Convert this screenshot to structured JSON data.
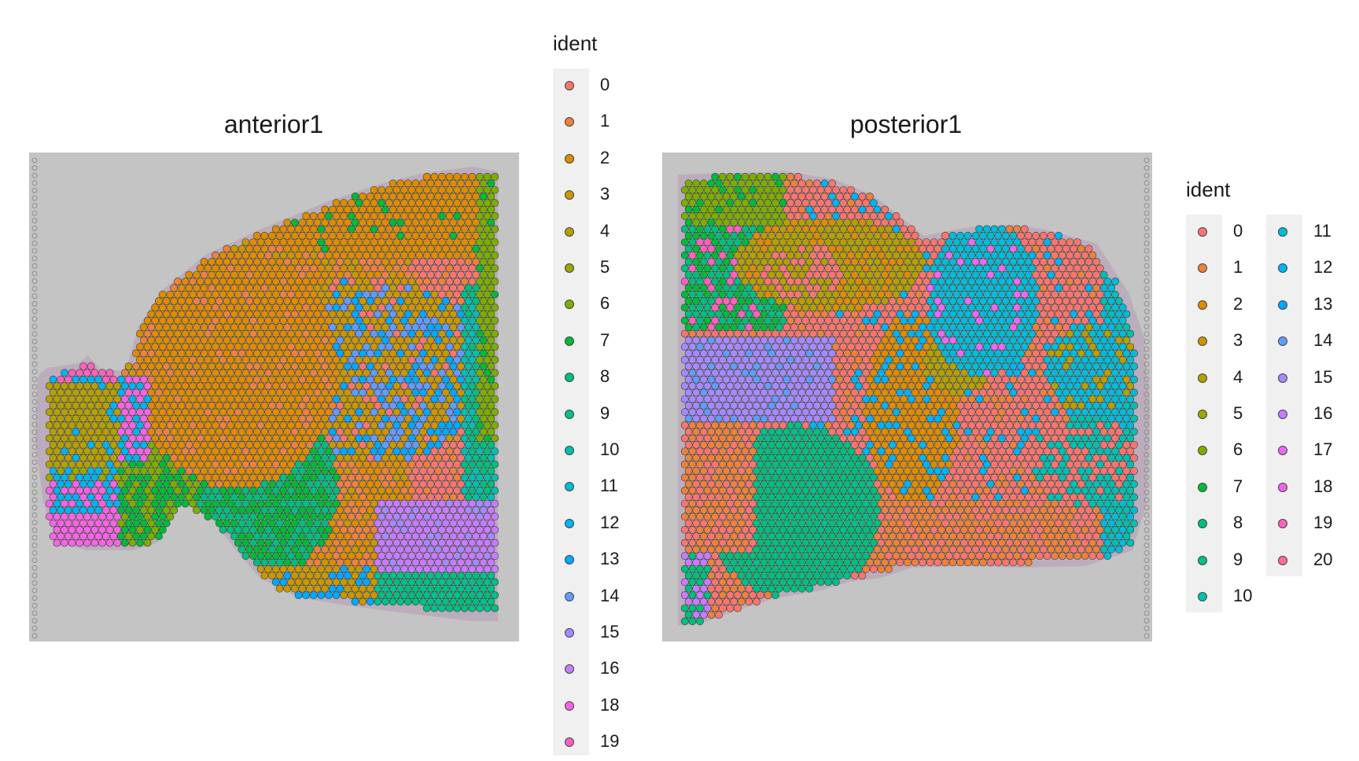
{
  "chart_data": [
    {
      "type": "scatter",
      "title": "anterior1",
      "legend_position": "right",
      "legend_title": "ident",
      "legend_entries": [
        "0",
        "1",
        "2",
        "3",
        "4",
        "5",
        "6",
        "7",
        "8",
        "9",
        "10",
        "11",
        "12",
        "13",
        "14",
        "15",
        "16",
        "18",
        "19"
      ],
      "background": "tissue image"
    },
    {
      "type": "scatter",
      "title": "posterior1",
      "legend_position": "right",
      "legend_title": "ident",
      "legend_entries": [
        "0",
        "1",
        "2",
        "3",
        "4",
        "5",
        "6",
        "7",
        "8",
        "9",
        "10",
        "11",
        "12",
        "13",
        "14",
        "15",
        "16",
        "17",
        "18",
        "19",
        "20"
      ],
      "background": "tissue image"
    }
  ],
  "palette": {
    "0": "#F8766D",
    "1": "#EC823C",
    "2": "#DE8C00",
    "3": "#C99800",
    "4": "#B4A000",
    "5": "#9AA800",
    "6": "#7CAE00",
    "7": "#00BA38",
    "8": "#00BF7D",
    "9": "#00C08B",
    "10": "#00C0AF",
    "11": "#00BCD8",
    "12": "#00B4F0",
    "13": "#00A9FF",
    "14": "#619CFF",
    "15": "#A58AFF",
    "16": "#C77CFF",
    "17": "#E76BF3",
    "18": "#F564E3",
    "19": "#FF62BC",
    "20": "#FF6C91"
  }
}
